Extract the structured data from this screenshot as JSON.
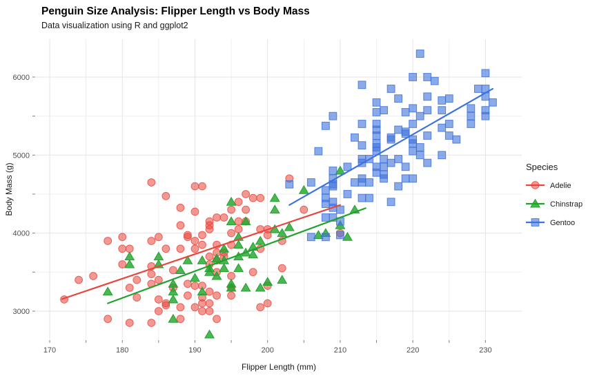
{
  "chart": {
    "title": "Penguin Size Analysis: Flipper Length vs Body Mass",
    "subtitle": "Data visualization using R and ggplot2"
  },
  "chart_data": {
    "type": "scatter",
    "title": "Penguin Size Analysis: Flipper Length vs Body Mass",
    "subtitle": "Data visualization using R and ggplot2",
    "xlabel": "Flipper Length (mm)",
    "ylabel": "Body Mass (g)",
    "xlim": [
      168.1,
      235.0
    ],
    "ylim": [
      2638,
      6485
    ],
    "x_ticks": [
      170,
      180,
      190,
      200,
      210,
      220,
      230
    ],
    "x_minor": [
      175,
      185,
      195,
      205,
      215,
      225
    ],
    "y_ticks": [
      3000,
      4000,
      5000,
      6000
    ],
    "y_minor": [
      3500,
      4500,
      5500
    ],
    "grid": true,
    "grid_major_color": "#e3e3e3",
    "grid_minor_color": "#efefef",
    "tick_color": "#808080",
    "legend_title": "Species",
    "legend_position": "right",
    "series": [
      {
        "name": "Adelie",
        "marker": "circle",
        "color": "#e8453c",
        "point_alpha": 0.55,
        "trend": [
          [
            171.7,
            3155
          ],
          [
            210.0,
            4360
          ]
        ],
        "points": [
          [
            172,
            3150
          ],
          [
            174,
            3400
          ],
          [
            176,
            3450
          ],
          [
            178,
            3900
          ],
          [
            178,
            2900
          ],
          [
            180,
            3950
          ],
          [
            180,
            3800
          ],
          [
            180,
            3600
          ],
          [
            181,
            3800
          ],
          [
            181,
            3300
          ],
          [
            181,
            2850
          ],
          [
            182,
            3400
          ],
          [
            182,
            3175
          ],
          [
            184,
            4650
          ],
          [
            184,
            3900
          ],
          [
            184,
            3575
          ],
          [
            184,
            3475
          ],
          [
            184,
            3350
          ],
          [
            184,
            2850
          ],
          [
            185,
            3950
          ],
          [
            185,
            3400
          ],
          [
            185,
            3150
          ],
          [
            185,
            3000
          ],
          [
            186,
            4475
          ],
          [
            186,
            3800
          ],
          [
            186,
            3100
          ],
          [
            186,
            3075
          ],
          [
            187,
            3525
          ],
          [
            187,
            3300
          ],
          [
            188,
            4325
          ],
          [
            188,
            4100
          ],
          [
            188,
            3800
          ],
          [
            188,
            3050
          ],
          [
            188,
            2900
          ],
          [
            189,
            3975
          ],
          [
            189,
            3950
          ],
          [
            189,
            3350
          ],
          [
            189,
            3200
          ],
          [
            190,
            4275
          ],
          [
            190,
            4600
          ],
          [
            190,
            3900
          ],
          [
            190,
            3800
          ],
          [
            190,
            3325
          ],
          [
            190,
            3050
          ],
          [
            191,
            4600
          ],
          [
            191,
            3975
          ],
          [
            191,
            3850
          ],
          [
            191,
            3325
          ],
          [
            191,
            3175
          ],
          [
            191,
            3100
          ],
          [
            191,
            3000
          ],
          [
            192,
            4150
          ],
          [
            192,
            4100
          ],
          [
            192,
            4050
          ],
          [
            192,
            3700
          ],
          [
            192,
            3600
          ],
          [
            192,
            3250
          ],
          [
            192,
            3100
          ],
          [
            192,
            3000
          ],
          [
            193,
            4200
          ],
          [
            193,
            3850
          ],
          [
            193,
            3750
          ],
          [
            193,
            3650
          ],
          [
            193,
            3500
          ],
          [
            193,
            3200
          ],
          [
            193,
            2900
          ],
          [
            194,
            4200
          ],
          [
            194,
            3750
          ],
          [
            194,
            3700
          ],
          [
            195,
            4300
          ],
          [
            195,
            4000
          ],
          [
            195,
            3850
          ],
          [
            195,
            3450
          ],
          [
            195,
            3300
          ],
          [
            195,
            3200
          ],
          [
            196,
            4400
          ],
          [
            196,
            4150
          ],
          [
            196,
            4050
          ],
          [
            197,
            4500
          ],
          [
            197,
            4300
          ],
          [
            197,
            4150
          ],
          [
            198,
            4450
          ],
          [
            198,
            3500
          ],
          [
            199,
            4450
          ],
          [
            199,
            4050
          ],
          [
            199,
            3800
          ],
          [
            199,
            3050
          ],
          [
            200,
            4050
          ],
          [
            200,
            3975
          ],
          [
            200,
            3325
          ],
          [
            200,
            3100
          ],
          [
            202,
            3900
          ],
          [
            202,
            3550
          ],
          [
            203,
            4700
          ],
          [
            205,
            4300
          ],
          [
            210,
            4000
          ]
        ]
      },
      {
        "name": "Chinstrap",
        "marker": "triangle",
        "color": "#1fa32b",
        "point_alpha": 0.8,
        "trend": [
          [
            178.0,
            3100
          ],
          [
            213.5,
            4320
          ]
        ],
        "points": [
          [
            178,
            3250
          ],
          [
            181,
            3700
          ],
          [
            181,
            3600
          ],
          [
            185,
            3700
          ],
          [
            185,
            3600
          ],
          [
            187,
            3350
          ],
          [
            187,
            3250
          ],
          [
            187,
            3150
          ],
          [
            187,
            2900
          ],
          [
            188,
            3525
          ],
          [
            189,
            3650
          ],
          [
            190,
            3425
          ],
          [
            191,
            3650
          ],
          [
            191,
            3250
          ],
          [
            192,
            3550
          ],
          [
            192,
            3500
          ],
          [
            192,
            2700
          ],
          [
            193,
            3675
          ],
          [
            193,
            3450
          ],
          [
            194,
            3800
          ],
          [
            194,
            3650
          ],
          [
            194,
            3550
          ],
          [
            195,
            4400
          ],
          [
            195,
            4150
          ],
          [
            195,
            3350
          ],
          [
            195,
            3300
          ],
          [
            196,
            3950
          ],
          [
            196,
            3850
          ],
          [
            196,
            3700
          ],
          [
            196,
            3550
          ],
          [
            197,
            4150
          ],
          [
            197,
            3750
          ],
          [
            197,
            3300
          ],
          [
            198,
            3825
          ],
          [
            198,
            3725
          ],
          [
            199,
            3900
          ],
          [
            199,
            3300
          ],
          [
            200,
            3375
          ],
          [
            201,
            4450
          ],
          [
            201,
            4300
          ],
          [
            201,
            4050
          ],
          [
            202,
            4000
          ],
          [
            202,
            3400
          ],
          [
            203,
            4075
          ],
          [
            205,
            4550
          ],
          [
            207,
            3975
          ],
          [
            208,
            4000
          ],
          [
            210,
            4800
          ],
          [
            210,
            4100
          ],
          [
            211,
            3950
          ],
          [
            212,
            4300
          ]
        ]
      },
      {
        "name": "Gentoo",
        "marker": "square",
        "color": "#3d72dc",
        "point_alpha": 0.6,
        "trend": [
          [
            203.0,
            4360
          ],
          [
            231.0,
            5850
          ]
        ],
        "points": [
          [
            203,
            4625
          ],
          [
            206,
            4650
          ],
          [
            206,
            3950
          ],
          [
            207,
            5050
          ],
          [
            208,
            5375
          ],
          [
            208,
            4550
          ],
          [
            208,
            4450
          ],
          [
            208,
            4375
          ],
          [
            208,
            4200
          ],
          [
            208,
            3950
          ],
          [
            209,
            5500
          ],
          [
            209,
            4800
          ],
          [
            209,
            4700
          ],
          [
            209,
            4625
          ],
          [
            209,
            4600
          ],
          [
            209,
            4400
          ],
          [
            209,
            4325
          ],
          [
            209,
            4200
          ],
          [
            210,
            4300
          ],
          [
            210,
            4150
          ],
          [
            210,
            3975
          ],
          [
            211,
            4850
          ],
          [
            211,
            4500
          ],
          [
            212,
            5225
          ],
          [
            212,
            4650
          ],
          [
            213,
            5900
          ],
          [
            213,
            5400
          ],
          [
            213,
            5125
          ],
          [
            213,
            4950
          ],
          [
            213,
            4900
          ],
          [
            213,
            4700
          ],
          [
            213,
            4650
          ],
          [
            213,
            4450
          ],
          [
            214,
            4950
          ],
          [
            214,
            4650
          ],
          [
            214,
            4450
          ],
          [
            215,
            5675
          ],
          [
            215,
            5550
          ],
          [
            215,
            5400
          ],
          [
            215,
            5325
          ],
          [
            215,
            5250
          ],
          [
            215,
            5150
          ],
          [
            215,
            5100
          ],
          [
            215,
            5050
          ],
          [
            215,
            4850
          ],
          [
            215,
            4775
          ],
          [
            216,
            5575
          ],
          [
            216,
            4950
          ],
          [
            216,
            4850
          ],
          [
            216,
            4750
          ],
          [
            216,
            4700
          ],
          [
            217,
            5850
          ],
          [
            217,
            5225
          ],
          [
            217,
            5200
          ],
          [
            217,
            4900
          ],
          [
            217,
            4400
          ],
          [
            218,
            5725
          ],
          [
            218,
            5325
          ],
          [
            218,
            4950
          ],
          [
            218,
            4600
          ],
          [
            219,
            5550
          ],
          [
            219,
            5300
          ],
          [
            219,
            5275
          ],
          [
            219,
            4850
          ],
          [
            219,
            4700
          ],
          [
            220,
            6000
          ],
          [
            220,
            5600
          ],
          [
            220,
            5400
          ],
          [
            220,
            5200
          ],
          [
            220,
            5150
          ],
          [
            220,
            5050
          ],
          [
            220,
            4700
          ],
          [
            221,
            6300
          ],
          [
            221,
            5500
          ],
          [
            221,
            5100
          ],
          [
            221,
            5000
          ],
          [
            222,
            6000
          ],
          [
            222,
            5750
          ],
          [
            222,
            5575
          ],
          [
            222,
            5250
          ],
          [
            222,
            4900
          ],
          [
            223,
            5950
          ],
          [
            224,
            5700
          ],
          [
            224,
            5575
          ],
          [
            224,
            5350
          ],
          [
            224,
            5000
          ],
          [
            225,
            5725
          ],
          [
            225,
            5400
          ],
          [
            225,
            5250
          ],
          [
            226,
            5200
          ],
          [
            228,
            5600
          ],
          [
            228,
            5500
          ],
          [
            228,
            5400
          ],
          [
            229,
            5850
          ],
          [
            230,
            6050
          ],
          [
            230,
            5850
          ],
          [
            230,
            5750
          ],
          [
            230,
            5575
          ],
          [
            230,
            5500
          ],
          [
            231,
            5675
          ]
        ]
      }
    ]
  }
}
